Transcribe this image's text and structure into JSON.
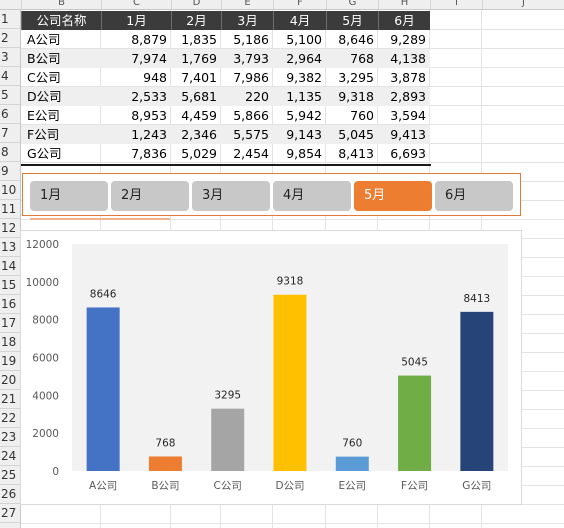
{
  "sheet": {
    "columns": [
      "B",
      "C",
      "D",
      "E",
      "F",
      "G",
      "H",
      "I",
      "J"
    ],
    "rows": [
      "1",
      "2",
      "3",
      "4",
      "5",
      "6",
      "7",
      "8",
      "9",
      "10",
      "11",
      "12",
      "13",
      "14",
      "15",
      "16",
      "17",
      "18",
      "19",
      "20",
      "21",
      "22",
      "23",
      "24",
      "25",
      "26",
      "27"
    ]
  },
  "table": {
    "headers": [
      "公司名称",
      "1月",
      "2月",
      "3月",
      "4月",
      "5月",
      "6月"
    ],
    "rows": [
      [
        "A公司",
        "8,879",
        "1,835",
        "5,186",
        "5,100",
        "8,646",
        "9,289"
      ],
      [
        "B公司",
        "7,974",
        "1,769",
        "3,793",
        "2,964",
        "768",
        "4,138"
      ],
      [
        "C公司",
        "948",
        "7,401",
        "7,986",
        "9,382",
        "3,295",
        "3,878"
      ],
      [
        "D公司",
        "2,533",
        "5,681",
        "220",
        "1,135",
        "9,318",
        "2,893"
      ],
      [
        "E公司",
        "8,953",
        "4,459",
        "5,866",
        "5,942",
        "760",
        "3,594"
      ],
      [
        "F公司",
        "1,243",
        "2,346",
        "5,575",
        "9,143",
        "5,045",
        "9,413"
      ],
      [
        "G公司",
        "7,836",
        "5,029",
        "2,454",
        "9,854",
        "8,413",
        "6,693"
      ]
    ]
  },
  "slicer": {
    "items": [
      "1月",
      "2月",
      "3月",
      "4月",
      "5月",
      "6月"
    ],
    "selected_index": 4,
    "selected_color": "#ed7d31",
    "unselected_color": "#c8c8c8",
    "border_color": "#e07b39"
  },
  "chart_data": {
    "type": "bar",
    "categories": [
      "A公司",
      "B公司",
      "C公司",
      "D公司",
      "E公司",
      "F公司",
      "G公司"
    ],
    "values": [
      8646,
      768,
      3295,
      9318,
      760,
      5045,
      8413
    ],
    "colors": [
      "#4472c4",
      "#ed7d31",
      "#a5a5a5",
      "#ffc000",
      "#5b9bd5",
      "#70ad47",
      "#264478"
    ],
    "ylim": [
      0,
      12000
    ],
    "yticks": [
      0,
      2000,
      4000,
      6000,
      8000,
      10000,
      12000
    ],
    "data_labels": true,
    "plot_area_fill": "#f2f2f2",
    "title": "",
    "xlabel": "",
    "ylabel": ""
  }
}
